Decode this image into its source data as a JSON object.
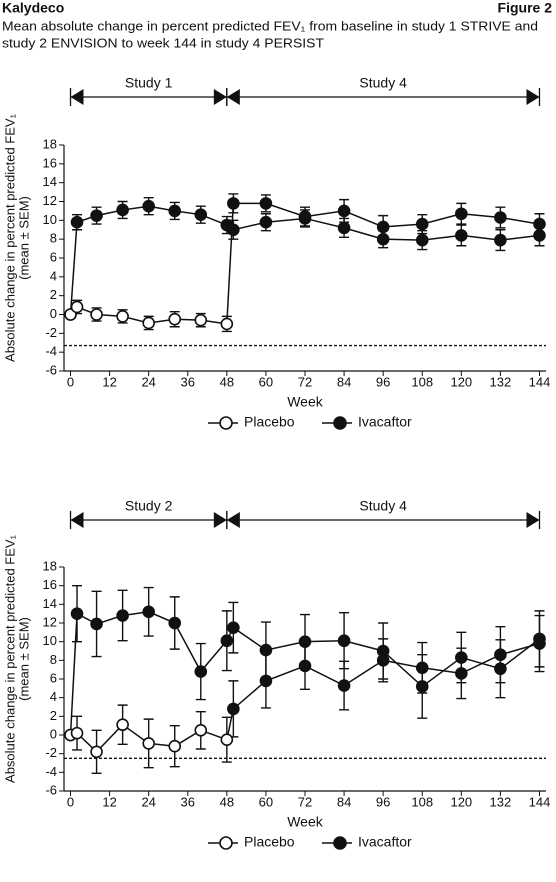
{
  "header": {
    "title": "Kalydeco",
    "figure": "Figure 2",
    "subtitle": [
      "Mean absolute change in percent predicted FEV₁ from baseline in study 1 STRIVE and",
      "study 2 ENVISION to week 144 in study 4 PERSIST"
    ]
  },
  "chart_data": [
    {
      "type": "line",
      "periods": [
        {
          "label": "Study 1",
          "start": 0,
          "end": 48
        },
        {
          "label": "Study 4",
          "start": 48,
          "end": 144
        }
      ],
      "y_label": [
        "Absolute change in percent predicted FEV₁",
        "(mean ± SEM)"
      ],
      "x_label": "Week",
      "x": [
        0,
        2,
        8,
        16,
        24,
        32,
        40,
        48,
        50,
        60,
        72,
        84,
        96,
        108,
        120,
        132,
        144
      ],
      "xlim": [
        -2,
        146
      ],
      "xticks": [
        0,
        12,
        24,
        36,
        48,
        60,
        72,
        84,
        96,
        108,
        120,
        132,
        144
      ],
      "ylim": [
        -6,
        18
      ],
      "yticks": [
        -6,
        -4,
        -2,
        0,
        2,
        4,
        6,
        8,
        10,
        12,
        14,
        16,
        18
      ],
      "reference_line": -3.3,
      "legend": "bottom",
      "series": [
        {
          "name": "Placebo",
          "color": "#111111",
          "marker": [
            "open",
            "open",
            "open",
            "open",
            "open",
            "open",
            "open",
            "open",
            "filled",
            "filled",
            "filled",
            "filled",
            "filled",
            "filled",
            "filled",
            "filled",
            "filled"
          ],
          "values": [
            0,
            0.8,
            0,
            -0.2,
            -0.9,
            -0.5,
            -0.6,
            -1.0,
            11.8,
            11.8,
            10.4,
            11.0,
            9.3,
            9.6,
            10.7,
            10.3,
            9.6
          ],
          "errors": [
            null,
            0.7,
            0.7,
            0.7,
            0.7,
            0.8,
            0.7,
            0.8,
            1.0,
            0.9,
            1.0,
            1.2,
            1.2,
            1.0,
            1.1,
            1.1,
            1.1
          ]
        },
        {
          "name": "Ivacaftor",
          "color": "#111111",
          "marker": [
            "filled",
            "filled",
            "filled",
            "filled",
            "filled",
            "filled",
            "filled",
            "filled",
            "filled",
            "filled",
            "filled",
            "filled",
            "filled",
            "filled",
            "filled",
            "filled",
            "filled"
          ],
          "values": [
            0,
            9.8,
            10.5,
            11.1,
            11.5,
            11.0,
            10.6,
            9.5,
            9.0,
            9.8,
            10.2,
            9.2,
            8.0,
            7.9,
            8.4,
            7.9,
            8.4
          ],
          "errors": [
            null,
            0.8,
            0.9,
            0.9,
            0.9,
            0.9,
            0.9,
            0.9,
            1.0,
            0.9,
            0.9,
            1.0,
            0.9,
            1.0,
            1.1,
            1.1,
            1.1
          ]
        }
      ]
    },
    {
      "type": "line",
      "periods": [
        {
          "label": "Study 2",
          "start": 0,
          "end": 48
        },
        {
          "label": "Study 4",
          "start": 48,
          "end": 144
        }
      ],
      "y_label": [
        "Absolute change in percent predicted FEV₁",
        "(mean ± SEM)"
      ],
      "x_label": "Week",
      "x": [
        0,
        2,
        8,
        16,
        24,
        32,
        40,
        48,
        50,
        60,
        72,
        84,
        96,
        108,
        120,
        132,
        144
      ],
      "xlim": [
        -2,
        146
      ],
      "xticks": [
        0,
        12,
        24,
        36,
        48,
        60,
        72,
        84,
        96,
        108,
        120,
        132,
        144
      ],
      "ylim": [
        -6,
        18
      ],
      "yticks": [
        -6,
        -4,
        -2,
        0,
        2,
        4,
        6,
        8,
        10,
        12,
        14,
        16,
        18
      ],
      "reference_line": -2.5,
      "legend": "bottom",
      "series": [
        {
          "name": "Placebo",
          "color": "#111111",
          "marker": [
            "open",
            "open",
            "open",
            "open",
            "open",
            "open",
            "open",
            "open",
            "filled",
            "filled",
            "filled",
            "filled",
            "filled",
            "filled",
            "filled",
            "filled",
            "filled"
          ],
          "values": [
            0,
            0.2,
            -1.8,
            1.1,
            -0.9,
            -1.2,
            0.5,
            -0.5,
            2.8,
            5.8,
            7.4,
            5.3,
            8.0,
            7.2,
            6.6,
            8.6,
            9.8
          ],
          "errors": [
            null,
            1.8,
            2.3,
            2.1,
            2.6,
            2.2,
            2.0,
            2.4,
            3.0,
            2.9,
            2.5,
            2.6,
            2.3,
            2.7,
            2.7,
            3.0,
            3.0
          ]
        },
        {
          "name": "Ivacaftor",
          "color": "#111111",
          "marker": [
            "filled",
            "filled",
            "filled",
            "filled",
            "filled",
            "filled",
            "filled",
            "filled",
            "filled",
            "filled",
            "filled",
            "filled",
            "filled",
            "filled",
            "filled",
            "filled",
            "filled"
          ],
          "values": [
            0,
            13.0,
            11.9,
            12.8,
            13.2,
            12.0,
            6.8,
            10.1,
            11.5,
            9.1,
            10.0,
            10.1,
            9.0,
            5.2,
            8.3,
            7.1,
            10.3
          ],
          "errors": [
            null,
            3.0,
            3.5,
            2.7,
            2.6,
            2.8,
            3.0,
            3.2,
            2.7,
            3.0,
            2.9,
            3.0,
            3.0,
            3.4,
            2.7,
            3.1,
            3.0
          ]
        }
      ]
    }
  ]
}
